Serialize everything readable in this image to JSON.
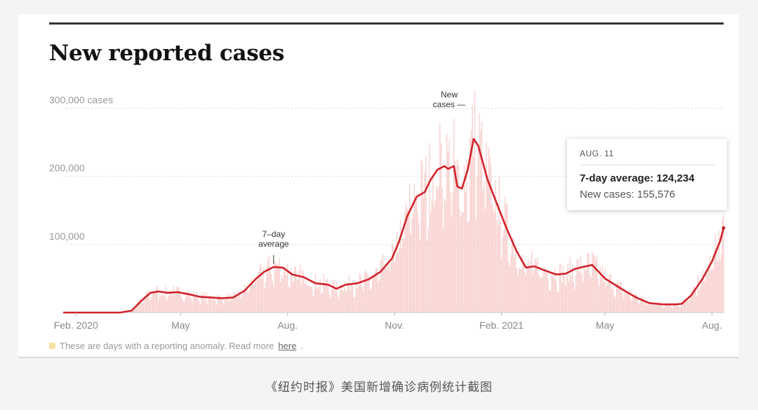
{
  "figure": {
    "title": "New reported cases",
    "note": "These are days with a reporting anomaly. Read more",
    "note_link": "here",
    "caption": "《纽约时报》美国新增确诊病例统计截图"
  },
  "tooltip": {
    "date": "AUG. 11",
    "avg_label": "7-day average: 124,234",
    "new_label": "New cases: 155,576"
  },
  "chart_data": {
    "type": "area",
    "title": "New reported cases",
    "y_tick_labels": [
      "300,000 cases",
      "200,000",
      "100,000"
    ],
    "y_ticks": [
      300000,
      200000,
      100000
    ],
    "ylim": [
      0,
      320000
    ],
    "x_tick_labels": [
      "Feb. 2020",
      "May",
      "Aug.",
      "Nov.",
      "Feb. 2021",
      "May",
      "Aug."
    ],
    "x_ticks": [
      "2020-02-01",
      "2020-05-01",
      "2020-08-01",
      "2020-11-01",
      "2021-02-01",
      "2021-05-01",
      "2021-08-01"
    ],
    "xlim": [
      "2020-01-21",
      "2021-08-11"
    ],
    "grid": true,
    "annotations": [
      {
        "text": [
          "7–day",
          "average"
        ],
        "date": "2020-07-20",
        "value": 68000
      },
      {
        "text": [
          "New",
          "cases —"
        ],
        "date": "2020-12-18",
        "value": 300000
      }
    ],
    "series": [
      {
        "name": "7-day average",
        "color": "#d0232b",
        "points": [
          [
            "2020-01-21",
            0
          ],
          [
            "2020-03-10",
            0
          ],
          [
            "2020-03-20",
            3000
          ],
          [
            "2020-03-28",
            17000
          ],
          [
            "2020-04-05",
            29000
          ],
          [
            "2020-04-12",
            31000
          ],
          [
            "2020-04-20",
            29000
          ],
          [
            "2020-04-28",
            30000
          ],
          [
            "2020-05-08",
            27000
          ],
          [
            "2020-05-18",
            23000
          ],
          [
            "2020-05-28",
            22000
          ],
          [
            "2020-06-05",
            21000
          ],
          [
            "2020-06-15",
            22000
          ],
          [
            "2020-06-25",
            32000
          ],
          [
            "2020-07-05",
            50000
          ],
          [
            "2020-07-12",
            60000
          ],
          [
            "2020-07-20",
            67000
          ],
          [
            "2020-07-28",
            66000
          ],
          [
            "2020-08-05",
            56000
          ],
          [
            "2020-08-15",
            52000
          ],
          [
            "2020-08-25",
            43000
          ],
          [
            "2020-09-05",
            41000
          ],
          [
            "2020-09-12",
            35000
          ],
          [
            "2020-09-20",
            41000
          ],
          [
            "2020-09-30",
            43000
          ],
          [
            "2020-10-10",
            49000
          ],
          [
            "2020-10-20",
            60000
          ],
          [
            "2020-10-30",
            80000
          ],
          [
            "2020-11-05",
            105000
          ],
          [
            "2020-11-12",
            142000
          ],
          [
            "2020-11-20",
            170000
          ],
          [
            "2020-11-27",
            177000
          ],
          [
            "2020-12-02",
            195000
          ],
          [
            "2020-12-08",
            210000
          ],
          [
            "2020-12-14",
            215000
          ],
          [
            "2020-12-17",
            211000
          ],
          [
            "2020-12-22",
            215000
          ],
          [
            "2020-12-25",
            185000
          ],
          [
            "2020-12-29",
            182000
          ],
          [
            "2021-01-03",
            210000
          ],
          [
            "2021-01-08",
            255000
          ],
          [
            "2021-01-12",
            245000
          ],
          [
            "2021-01-20",
            195000
          ],
          [
            "2021-01-28",
            160000
          ],
          [
            "2021-02-05",
            125000
          ],
          [
            "2021-02-14",
            90000
          ],
          [
            "2021-02-22",
            66000
          ],
          [
            "2021-03-01",
            68000
          ],
          [
            "2021-03-10",
            62000
          ],
          [
            "2021-03-20",
            56000
          ],
          [
            "2021-03-28",
            57000
          ],
          [
            "2021-04-05",
            64000
          ],
          [
            "2021-04-12",
            67000
          ],
          [
            "2021-04-20",
            70000
          ],
          [
            "2021-05-01",
            50000
          ],
          [
            "2021-05-15",
            35000
          ],
          [
            "2021-05-28",
            22000
          ],
          [
            "2021-06-08",
            14000
          ],
          [
            "2021-06-20",
            12000
          ],
          [
            "2021-07-01",
            12000
          ],
          [
            "2021-07-06",
            13000
          ],
          [
            "2021-07-14",
            25000
          ],
          [
            "2021-07-24",
            50000
          ],
          [
            "2021-08-01",
            75000
          ],
          [
            "2021-08-08",
            105000
          ],
          [
            "2021-08-11",
            124234
          ]
        ]
      }
    ]
  },
  "colors": {
    "line": "#d0232b",
    "bars": "#f7c8c5",
    "text": "#121212",
    "axis": "#999999"
  }
}
